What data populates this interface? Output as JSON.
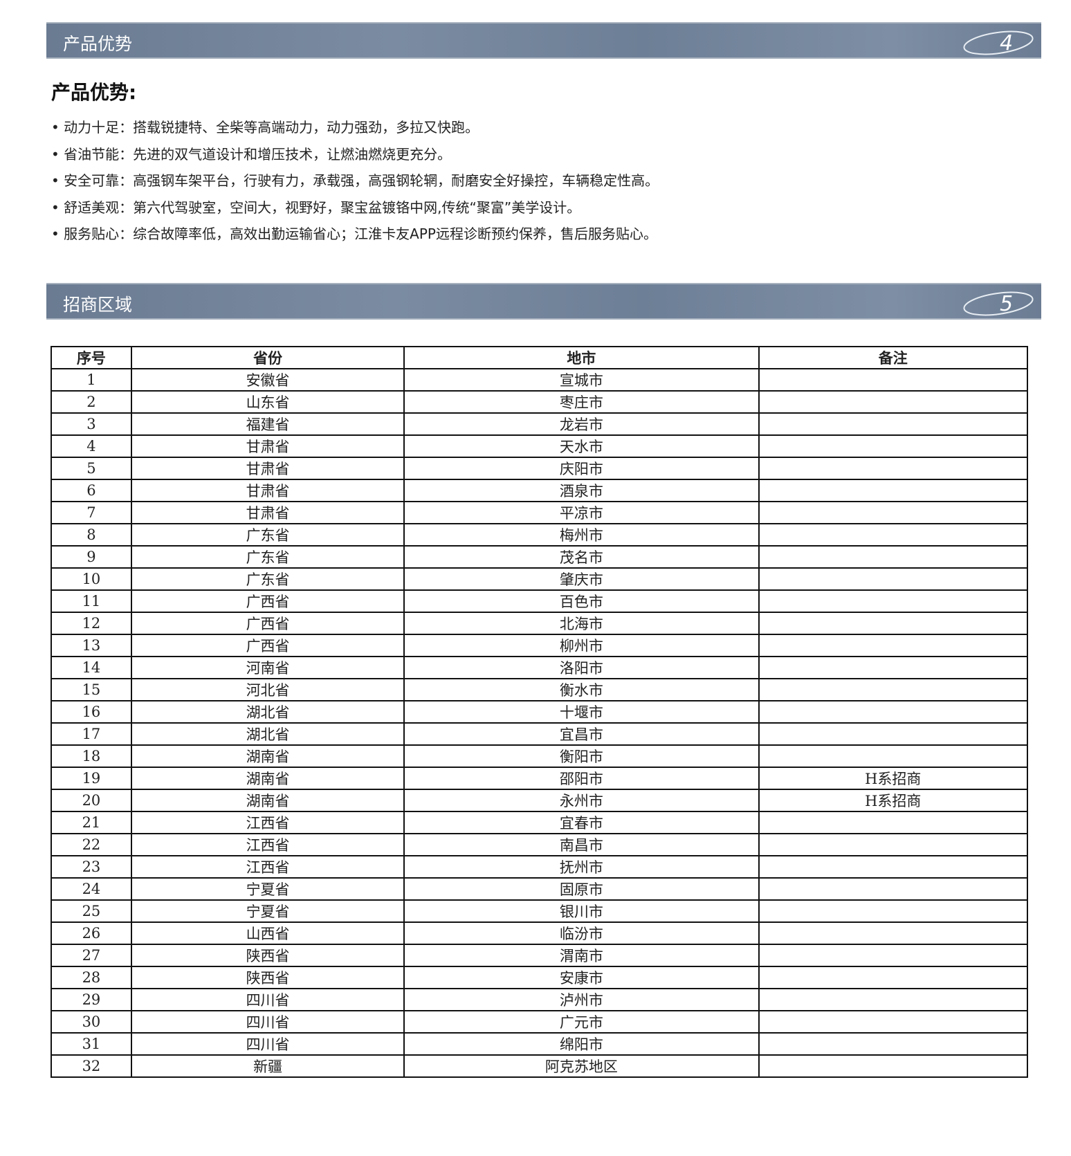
{
  "section4": {
    "title": "产品优势",
    "number": "4"
  },
  "advantages": {
    "heading": "产品优势:",
    "items": [
      "动力十足：搭载锐捷特、全柴等高端动力，动力强劲，多拉又快跑。",
      "省油节能：先进的双气道设计和增压技术，让燃油燃烧更充分。",
      "安全可靠：高强钢车架平台，行驶有力，承载强，高强钢轮辋，耐磨安全好操控，车辆稳定性高。",
      "舒适美观：第六代驾驶室，空间大，视野好，聚宝盆镀铬中网,传统“聚富”美学设计。",
      "服务贴心：综合故障率低，高效出勤运输省心；江淮卡友APP远程诊断预约保养，售后服务贴心。"
    ]
  },
  "section5": {
    "title": "招商区域",
    "number": "5"
  },
  "table": {
    "headers": [
      "序号",
      "省份",
      "地市",
      "备注"
    ],
    "rows": [
      [
        "1",
        "安徽省",
        "宣城市",
        ""
      ],
      [
        "2",
        "山东省",
        "枣庄市",
        ""
      ],
      [
        "3",
        "福建省",
        "龙岩市",
        ""
      ],
      [
        "4",
        "甘肃省",
        "天水市",
        ""
      ],
      [
        "5",
        "甘肃省",
        "庆阳市",
        ""
      ],
      [
        "6",
        "甘肃省",
        "酒泉市",
        ""
      ],
      [
        "7",
        "甘肃省",
        "平凉市",
        ""
      ],
      [
        "8",
        "广东省",
        "梅州市",
        ""
      ],
      [
        "9",
        "广东省",
        "茂名市",
        ""
      ],
      [
        "10",
        "广东省",
        "肇庆市",
        ""
      ],
      [
        "11",
        "广西省",
        "百色市",
        ""
      ],
      [
        "12",
        "广西省",
        "北海市",
        ""
      ],
      [
        "13",
        "广西省",
        "柳州市",
        ""
      ],
      [
        "14",
        "河南省",
        "洛阳市",
        ""
      ],
      [
        "15",
        "河北省",
        "衡水市",
        ""
      ],
      [
        "16",
        "湖北省",
        "十堰市",
        ""
      ],
      [
        "17",
        "湖北省",
        "宜昌市",
        ""
      ],
      [
        "18",
        "湖南省",
        "衡阳市",
        ""
      ],
      [
        "19",
        "湖南省",
        "邵阳市",
        "H系招商"
      ],
      [
        "20",
        "湖南省",
        "永州市",
        "H系招商"
      ],
      [
        "21",
        "江西省",
        "宜春市",
        ""
      ],
      [
        "22",
        "江西省",
        "南昌市",
        ""
      ],
      [
        "23",
        "江西省",
        "抚州市",
        ""
      ],
      [
        "24",
        "宁夏省",
        "固原市",
        ""
      ],
      [
        "25",
        "宁夏省",
        "银川市",
        ""
      ],
      [
        "26",
        "山西省",
        "临汾市",
        ""
      ],
      [
        "27",
        "陕西省",
        "渭南市",
        ""
      ],
      [
        "28",
        "陕西省",
        "安康市",
        ""
      ],
      [
        "29",
        "四川省",
        "泸州市",
        ""
      ],
      [
        "30",
        "四川省",
        "广元市",
        ""
      ],
      [
        "31",
        "四川省",
        "绵阳市",
        ""
      ],
      [
        "32",
        "新疆",
        "阿克苏地区",
        ""
      ]
    ]
  }
}
